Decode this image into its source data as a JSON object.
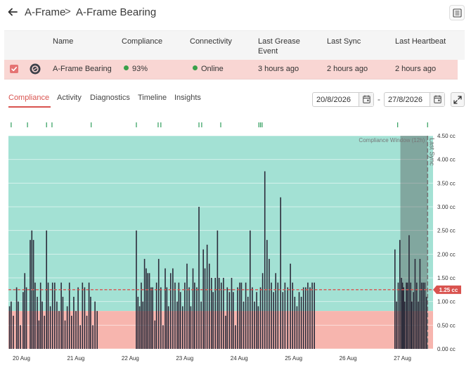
{
  "breadcrumb": {
    "root": "A-Frame",
    "separator": ">",
    "current": "A-Frame Bearing"
  },
  "table": {
    "headers": [
      "Name",
      "Compliance",
      "Connectivity",
      "Last Grease Event",
      "Last Sync",
      "Last Heartbeat"
    ],
    "row": {
      "name": "A-Frame Bearing",
      "compliance": "93%",
      "connectivity": "Online",
      "last_grease_event": "3 hours ago",
      "last_sync": "2 hours ago",
      "last_heartbeat": "2 hours ago",
      "selected": true
    }
  },
  "tabs": [
    {
      "label": "Compliance",
      "active": true
    },
    {
      "label": "Activity",
      "active": false
    },
    {
      "label": "Diagnostics",
      "active": false
    },
    {
      "label": "Timeline",
      "active": false
    },
    {
      "label": "Insights",
      "active": false
    }
  ],
  "date_range": {
    "from": "20/8/2026",
    "separator": "-",
    "to": "27/8/2026"
  },
  "colors": {
    "accent": "#d9534f",
    "compliant_band": "#a3e1d4",
    "noncompliant_band": "#f7b5ae",
    "bar": "#2b2b3a",
    "event_tick": "#2e9d5b",
    "row_highlight": "#f9d6d3"
  },
  "icons": {
    "back": "arrow-left-icon",
    "report": "document-icon",
    "checkbox": "checkbox-checked-icon",
    "asset": "bearing-icon",
    "calendar": "calendar-icon",
    "expand": "expand-icon"
  },
  "chart_data": {
    "type": "bar",
    "x_ticks": [
      "20 Aug",
      "21 Aug",
      "22 Aug",
      "23 Aug",
      "24 Aug",
      "25 Aug",
      "26 Aug",
      "27 Aug"
    ],
    "y_ticks": [
      "0.00 cc",
      "0.50 cc",
      "1.00 cc",
      "1.50 cc",
      "2.00 cc",
      "2.50 cc",
      "3.00 cc",
      "3.50 cc",
      "4.00 cc",
      "4.50 cc"
    ],
    "ylim": [
      0,
      4.5
    ],
    "xlim_days": [
      19.8,
      27.6
    ],
    "threshold": {
      "value": 1.25,
      "label": "1.25 cc"
    },
    "compliance_band_min": 0.8,
    "compliance_window": {
      "label": "Compliance Window (12h)",
      "start_day": 27.0,
      "end_day": 27.5
    },
    "last_sync": {
      "label": "Last Sync",
      "day": 27.5
    },
    "event_ticks_days": [
      19.85,
      20.15,
      20.5,
      20.6,
      21.32,
      22.15,
      22.55,
      22.6,
      23.3,
      23.35,
      23.7,
      24.4,
      24.43,
      24.46,
      26.95,
      27.5
    ],
    "bars": [
      [
        19.82,
        0.9
      ],
      [
        19.85,
        1.0
      ],
      [
        19.89,
        0.7
      ],
      [
        19.95,
        1.3
      ],
      [
        19.98,
        1.0
      ],
      [
        20.02,
        0.5
      ],
      [
        20.07,
        1.2
      ],
      [
        20.1,
        1.6
      ],
      [
        20.13,
        1.3
      ],
      [
        20.2,
        2.3
      ],
      [
        20.23,
        2.5
      ],
      [
        20.26,
        2.3
      ],
      [
        20.29,
        1.4
      ],
      [
        20.33,
        1.1
      ],
      [
        20.36,
        0.6
      ],
      [
        20.39,
        1.4
      ],
      [
        20.42,
        1.0
      ],
      [
        20.46,
        0.7
      ],
      [
        20.5,
        2.5
      ],
      [
        20.53,
        1.4
      ],
      [
        20.57,
        0.9
      ],
      [
        20.61,
        1.4
      ],
      [
        20.65,
        1.4
      ],
      [
        20.69,
        1.0
      ],
      [
        20.73,
        0.8
      ],
      [
        20.77,
        1.4
      ],
      [
        20.8,
        1.1
      ],
      [
        20.84,
        0.6
      ],
      [
        20.88,
        0.9
      ],
      [
        20.92,
        1.4
      ],
      [
        20.96,
        0.7
      ],
      [
        21.0,
        1.1
      ],
      [
        21.04,
        0.8
      ],
      [
        21.08,
        1.3
      ],
      [
        21.12,
        0.5
      ],
      [
        21.16,
        1.4
      ],
      [
        21.2,
        1.3
      ],
      [
        21.24,
        0.7
      ],
      [
        21.28,
        1.4
      ],
      [
        21.31,
        1.1
      ],
      [
        21.35,
        0.5
      ],
      [
        21.39,
        1.0
      ],
      [
        21.43,
        0.8
      ],
      [
        22.15,
        2.5
      ],
      [
        22.18,
        1.1
      ],
      [
        22.21,
        0.9
      ],
      [
        22.24,
        1.4
      ],
      [
        22.27,
        1.0
      ],
      [
        22.3,
        1.9
      ],
      [
        22.33,
        1.7
      ],
      [
        22.36,
        1.6
      ],
      [
        22.39,
        1.6
      ],
      [
        22.42,
        1.3
      ],
      [
        22.45,
        1.3
      ],
      [
        22.49,
        0.6
      ],
      [
        22.52,
        1.4
      ],
      [
        22.56,
        1.9
      ],
      [
        22.6,
        1.3
      ],
      [
        22.64,
        0.5
      ],
      [
        22.68,
        1.7
      ],
      [
        22.71,
        1.3
      ],
      [
        22.74,
        0.9
      ],
      [
        22.78,
        1.6
      ],
      [
        22.82,
        1.7
      ],
      [
        22.86,
        1.4
      ],
      [
        22.9,
        1.0
      ],
      [
        22.93,
        1.4
      ],
      [
        22.96,
        1.2
      ],
      [
        23.0,
        0.9
      ],
      [
        23.04,
        1.4
      ],
      [
        23.08,
        1.8
      ],
      [
        23.12,
        1.3
      ],
      [
        23.15,
        0.9
      ],
      [
        23.19,
        1.7
      ],
      [
        23.22,
        1.4
      ],
      [
        23.26,
        1.3
      ],
      [
        23.3,
        3.0
      ],
      [
        23.34,
        1.0
      ],
      [
        23.38,
        2.1
      ],
      [
        23.41,
        1.7
      ],
      [
        23.45,
        2.2
      ],
      [
        23.49,
        1.8
      ],
      [
        23.53,
        1.5
      ],
      [
        23.56,
        1.2
      ],
      [
        23.6,
        1.5
      ],
      [
        23.64,
        2.5
      ],
      [
        23.67,
        1.5
      ],
      [
        23.71,
        1.4
      ],
      [
        23.75,
        1.5
      ],
      [
        23.79,
        0.7
      ],
      [
        23.82,
        1.3
      ],
      [
        23.86,
        1.2
      ],
      [
        23.9,
        1.5
      ],
      [
        23.93,
        1.2
      ],
      [
        23.97,
        0.5
      ],
      [
        24.01,
        1.3
      ],
      [
        24.05,
        1.4
      ],
      [
        24.08,
        1.4
      ],
      [
        24.12,
        1.0
      ],
      [
        24.16,
        1.4
      ],
      [
        24.2,
        1.1
      ],
      [
        24.24,
        2.5
      ],
      [
        24.28,
        1.3
      ],
      [
        24.32,
        1.0
      ],
      [
        24.36,
        1.2
      ],
      [
        24.39,
        0.9
      ],
      [
        24.43,
        1.3
      ],
      [
        24.47,
        1.6
      ],
      [
        24.51,
        3.75
      ],
      [
        24.55,
        2.3
      ],
      [
        24.59,
        1.9
      ],
      [
        24.63,
        1.4
      ],
      [
        24.67,
        1.2
      ],
      [
        24.71,
        1.6
      ],
      [
        24.75,
        1.4
      ],
      [
        24.8,
        3.2
      ],
      [
        24.84,
        1.2
      ],
      [
        24.88,
        1.4
      ],
      [
        24.93,
        1.3
      ],
      [
        24.98,
        1.8
      ],
      [
        25.02,
        1.4
      ],
      [
        25.06,
        1.1
      ],
      [
        25.1,
        0.9
      ],
      [
        25.14,
        1.2
      ],
      [
        25.18,
        1.1
      ],
      [
        25.22,
        1.3
      ],
      [
        25.26,
        1.3
      ],
      [
        25.3,
        1.4
      ],
      [
        25.34,
        1.3
      ],
      [
        25.38,
        1.4
      ],
      [
        25.42,
        1.4
      ],
      [
        26.9,
        2.1
      ],
      [
        26.93,
        1.0
      ],
      [
        26.96,
        1.4
      ],
      [
        26.99,
        2.3
      ],
      [
        27.02,
        1.5
      ],
      [
        27.04,
        1.4
      ],
      [
        27.06,
        1.3
      ],
      [
        27.08,
        1.0
      ],
      [
        27.11,
        1.4
      ],
      [
        27.13,
        1.4
      ],
      [
        27.16,
        2.4
      ],
      [
        27.19,
        1.4
      ],
      [
        27.21,
        1.0
      ],
      [
        27.24,
        1.2
      ],
      [
        27.27,
        1.9
      ],
      [
        27.3,
        1.4
      ],
      [
        27.33,
        1.0
      ],
      [
        27.36,
        1.9
      ],
      [
        27.39,
        1.4
      ],
      [
        27.42,
        1.4
      ],
      [
        27.45,
        1.4
      ],
      [
        27.48,
        1.1
      ]
    ]
  }
}
